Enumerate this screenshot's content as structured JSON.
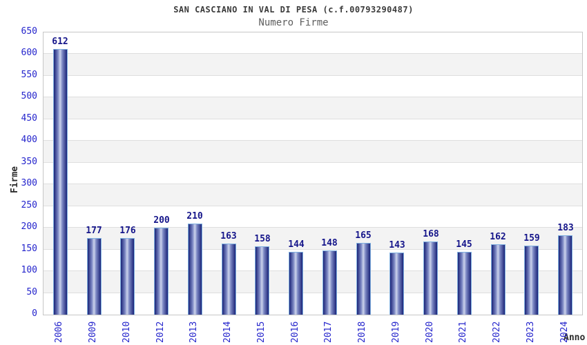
{
  "chart_data": {
    "type": "bar",
    "title": "SAN CASCIANO IN VAL DI PESA (c.f.00793290487)",
    "subtitle": "Numero Firme",
    "xlabel": "Anno",
    "ylabel": "Firme",
    "categories": [
      "2006",
      "2009",
      "2010",
      "2012",
      "2013",
      "2014",
      "2015",
      "2016",
      "2017",
      "2018",
      "2019",
      "2020",
      "2021",
      "2022",
      "2023",
      "2024"
    ],
    "values": [
      612,
      177,
      176,
      200,
      210,
      163,
      158,
      144,
      148,
      165,
      143,
      168,
      145,
      162,
      159,
      183
    ],
    "ylim": [
      0,
      650
    ],
    "ytick_step": 50,
    "grid": true,
    "legend": false,
    "value_labels_shown": true
  },
  "colors": {
    "background": "#ffffff",
    "title_text": "#3a3a3a",
    "subtitle_text": "#5d5d5d",
    "axis_title_text": "#2b2b2b",
    "tick_label_blue": "#2424cc",
    "value_label_navy": "#15158a",
    "bar_edge_dark": "#1b2478",
    "bar_mid": "#7d89c4",
    "bar_highlight": "#ccd3ec",
    "bar_outline_lightblue": "#7fb0e0",
    "band_gray": "#f3f3f3",
    "gridline": "#dedede",
    "plot_border": "#c6c6c6"
  }
}
